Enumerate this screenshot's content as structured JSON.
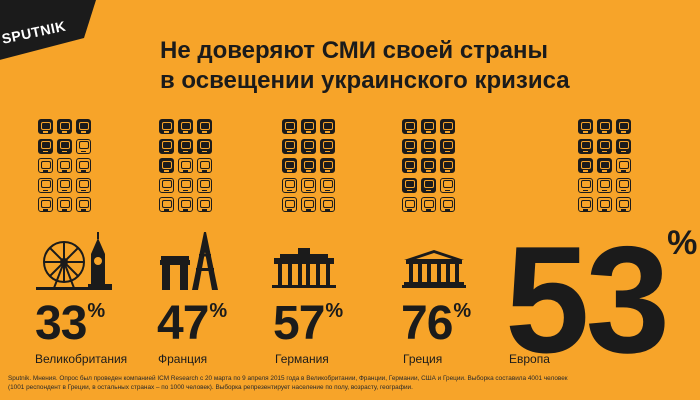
{
  "brand": {
    "logo_text": "SPUTNIK"
  },
  "title": {
    "line1": "Не доверяют СМИ своей страны",
    "line2": "в освещении  украинского кризиса"
  },
  "colors": {
    "background": "#f7a429",
    "ink": "#1b1b1b",
    "logo_bg": "#1b1b1b",
    "logo_text": "#ffffff"
  },
  "icons": {
    "tv": "tv-icon",
    "uk": "big-ben-london-eye-icon",
    "fr": "eiffel-tower-arc-icon",
    "de": "brandenburg-gate-icon",
    "gr": "parthenon-icon"
  },
  "chart_data": {
    "type": "pictogram",
    "unit_symbol": "%",
    "categories": [
      "Великобритания",
      "Франция",
      "Германия",
      "Греция",
      "Европа"
    ],
    "values": [
      33,
      47,
      57,
      76,
      53
    ],
    "icons_per_grid": 15
  },
  "footnote": {
    "line1": "Sputnik. Мнения. Опрос был проведен компанией ICM Research с 20 марта по 9 апреля 2015 года в Великобритании, Франции, Германии, США и Греции. Выборка составила  4001 человек",
    "line2": "(1001 респондент в Греции, в остальных странах – по 1000 человек). Выборка репрезентирует население по полу, возрасту, географии."
  }
}
